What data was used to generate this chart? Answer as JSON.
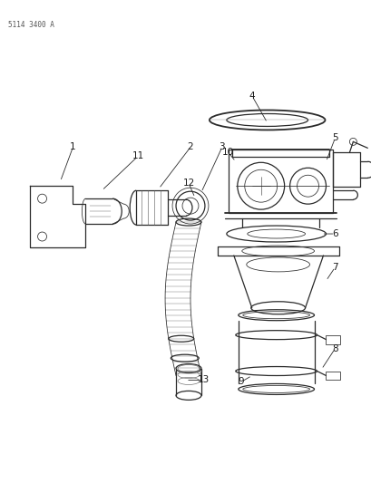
{
  "part_number": "5114 3400 A",
  "background_color": "#ffffff",
  "line_color": "#2a2a2a",
  "label_color": "#1a1a1a",
  "fig_width": 4.1,
  "fig_height": 5.33,
  "dpi": 100,
  "label_fontsize": 7.5,
  "pn_fontsize": 5.5,
  "lw_main": 0.9,
  "lw_thin": 0.55,
  "lw_thick": 1.3
}
